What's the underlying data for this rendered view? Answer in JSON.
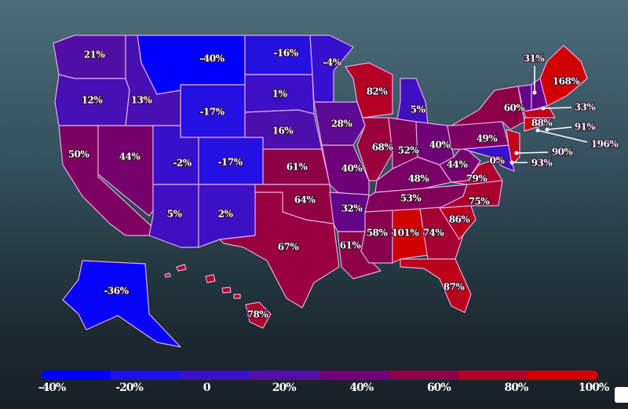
{
  "states": {
    "WA": {
      "label": "21%",
      "value": 21
    },
    "OR": {
      "label": "12%",
      "value": 12
    },
    "CA": {
      "label": "50%",
      "value": 50
    },
    "NV": {
      "label": "44%",
      "value": 44
    },
    "ID": {
      "label": "13%",
      "value": 13
    },
    "MT": {
      "label": "-40%",
      "value": -40
    },
    "WY": {
      "label": "-17%",
      "value": -17
    },
    "UT": {
      "label": "-2%",
      "value": -2
    },
    "CO": {
      "label": "-17%",
      "value": -17
    },
    "AZ": {
      "label": "5%",
      "value": 5
    },
    "NM": {
      "label": "2%",
      "value": 2
    },
    "ND": {
      "label": "-16%",
      "value": -16
    },
    "SD": {
      "label": "1%",
      "value": 1
    },
    "NE": {
      "label": "16%",
      "value": 16
    },
    "KS": {
      "label": "61%",
      "value": 61
    },
    "OK": {
      "label": "64%",
      "value": 64
    },
    "TX": {
      "label": "67%",
      "value": 67
    },
    "MN": {
      "label": "-4%",
      "value": -4
    },
    "IA": {
      "label": "28%",
      "value": 28
    },
    "MO": {
      "label": "40%",
      "value": 40
    },
    "AR": {
      "label": "32%",
      "value": 32
    },
    "LA": {
      "label": "61%",
      "value": 61
    },
    "WI": {
      "label": "82%",
      "value": 82
    },
    "IL": {
      "label": "68%",
      "value": 68
    },
    "MI": {
      "label": "5%",
      "value": 5
    },
    "IN": {
      "label": "52%",
      "value": 52
    },
    "OH": {
      "label": "40%",
      "value": 40
    },
    "KY": {
      "label": "48%",
      "value": 48
    },
    "TN": {
      "label": "53%",
      "value": 53
    },
    "MS": {
      "label": "58%",
      "value": 58
    },
    "AL": {
      "label": "101%",
      "value": 101
    },
    "GA": {
      "label": "74%",
      "value": 74
    },
    "FL": {
      "label": "87%",
      "value": 87
    },
    "SC": {
      "label": "86%",
      "value": 86
    },
    "NC": {
      "label": "75%",
      "value": 75
    },
    "VA": {
      "label": "79%",
      "value": 79
    },
    "WV": {
      "label": "44%",
      "value": 44
    },
    "PA": {
      "label": "49%",
      "value": 49
    },
    "NY": {
      "label": "60%",
      "value": 60
    },
    "MD": {
      "label": "0%",
      "value": 0
    },
    "DE": {
      "label": "93%",
      "value": 93
    },
    "NJ": {
      "label": "90%",
      "value": 90
    },
    "VT": {
      "label": "31%",
      "value": 31
    },
    "NH": {
      "label": "33%",
      "value": 33
    },
    "ME": {
      "label": "168%",
      "value": 168
    },
    "MA": {
      "label": "88%",
      "value": 88
    },
    "CT": {
      "label": "196%",
      "value": 196
    },
    "RI": {
      "label": "91%",
      "value": 91
    },
    "AK": {
      "label": "-36%",
      "value": -36
    },
    "HI": {
      "label": "78%",
      "value": 78
    }
  },
  "legend": {
    "ticks": [
      "-40%",
      "-20%",
      "0",
      "20%",
      "40%",
      "60%",
      "80%",
      "100%"
    ],
    "range": [
      -40,
      100
    ],
    "colors": [
      "#0000ff",
      "#2010e8",
      "#3a10c8",
      "#5010a8",
      "#700078",
      "#8c0048",
      "#b00028",
      "#d00000"
    ]
  }
}
